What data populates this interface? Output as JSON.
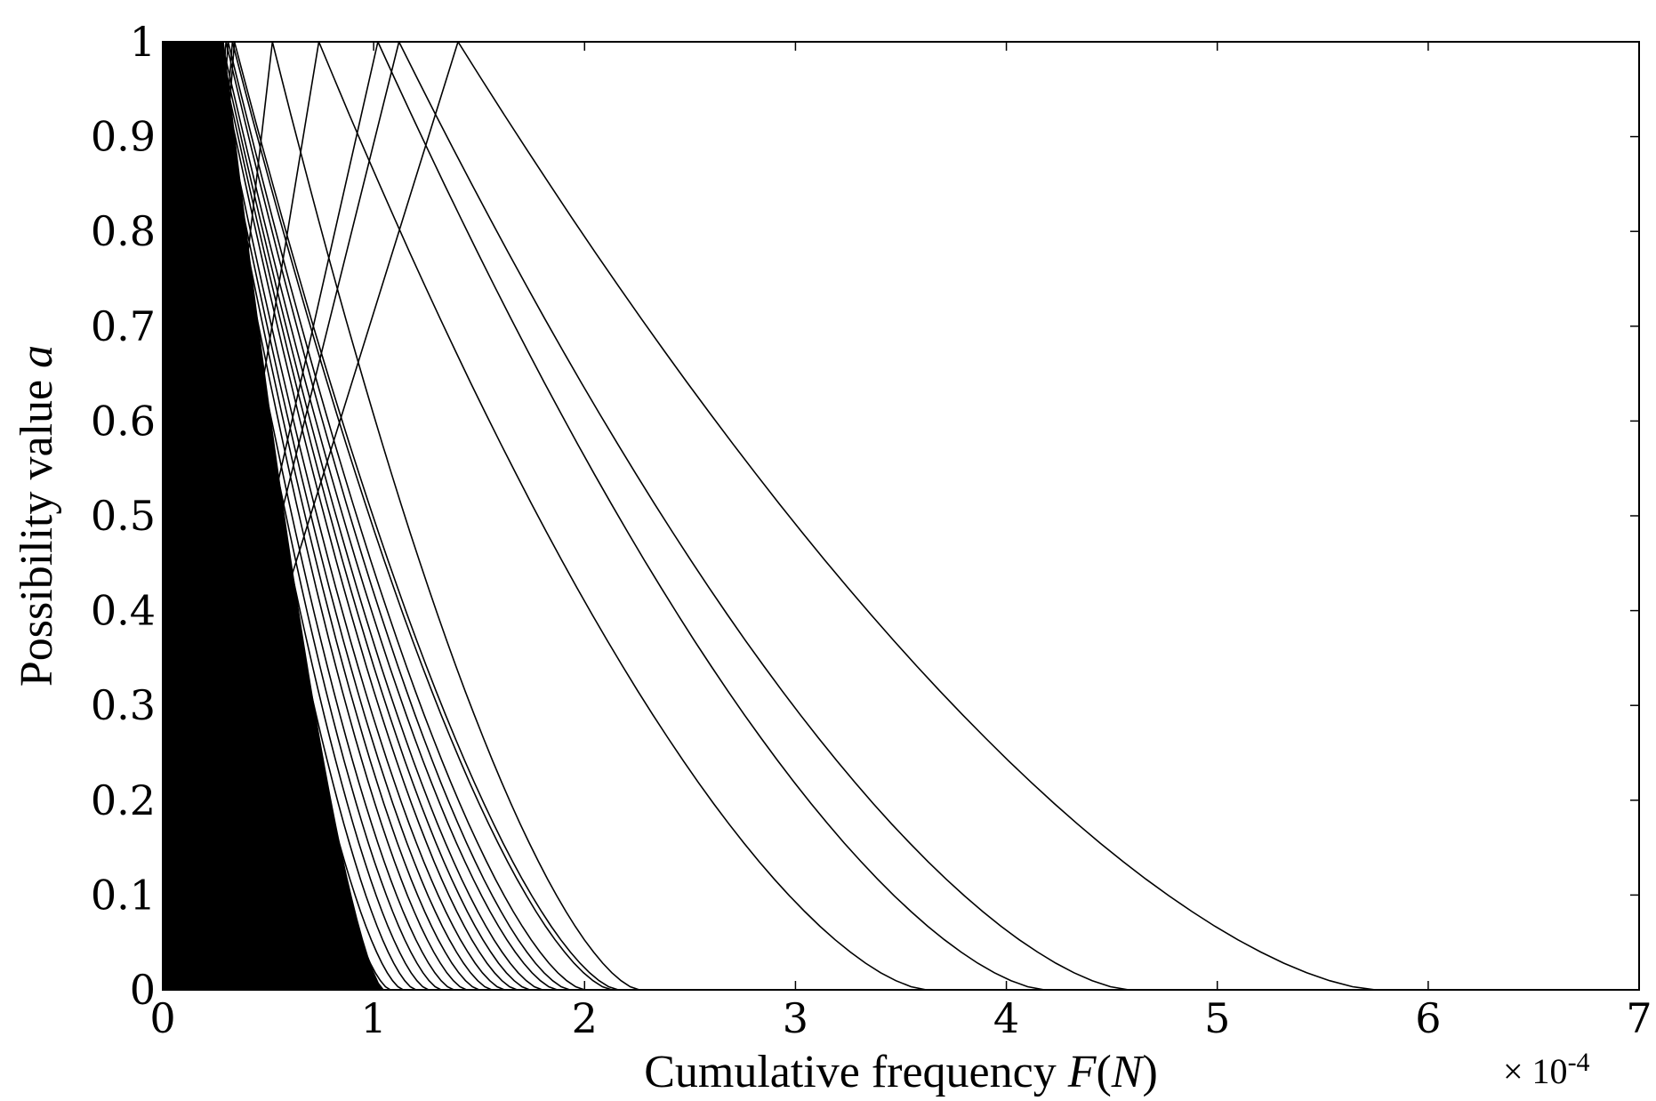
{
  "chart_data": {
    "type": "line",
    "title": "",
    "xlabel_text": "Cumulative frequency ",
    "xlabel_var": "F",
    "xlabel_paren_open": "(",
    "xlabel_var2": "N",
    "xlabel_paren_close": ")",
    "ylabel_text": "Possibility value ",
    "ylabel_var": "a",
    "x_multiplier": "× 10",
    "x_multiplier_exp": "-4",
    "xlim": [
      0,
      7
    ],
    "ylim": [
      0,
      1
    ],
    "xticks": [
      0,
      1,
      2,
      3,
      4,
      5,
      6,
      7
    ],
    "yticks": [
      0,
      0.1,
      0.2,
      0.3,
      0.4,
      0.5,
      0.6,
      0.7,
      0.8,
      0.9,
      1
    ],
    "xtick_labels": [
      "0",
      "1",
      "2",
      "3",
      "4",
      "5",
      "6",
      "7"
    ],
    "ytick_labels": [
      "0",
      "0.1",
      "0.2",
      "0.3",
      "0.4",
      "0.5",
      "0.6",
      "0.7",
      "0.8",
      "0.9",
      "1"
    ],
    "grid": false,
    "legend": "none",
    "line_color": "#000000",
    "series": [
      {
        "x": [
          0.0,
          1.4,
          5.75
        ],
        "y": [
          0,
          1,
          0
        ]
      },
      {
        "x": [
          0.0,
          1.12,
          4.58
        ],
        "y": [
          0,
          1,
          0
        ]
      },
      {
        "x": [
          0.0,
          1.02,
          4.18
        ],
        "y": [
          0,
          1,
          0
        ]
      },
      {
        "x": [
          0.0,
          0.74,
          3.62
        ],
        "y": [
          0,
          1,
          0
        ]
      },
      {
        "x": [
          0.0,
          0.52,
          2.26
        ],
        "y": [
          0,
          1,
          0
        ]
      },
      {
        "x": [
          0.0,
          0.34,
          2.16
        ],
        "y": [
          0,
          1,
          0
        ]
      },
      {
        "x": [
          0.0,
          0.33,
          2.13
        ],
        "y": [
          0,
          1,
          0
        ]
      },
      {
        "x": [
          0.0,
          0.31,
          2.0
        ],
        "y": [
          0,
          1,
          0
        ]
      },
      {
        "x": [
          0.0,
          0.3,
          1.93
        ],
        "y": [
          0,
          1,
          0
        ]
      },
      {
        "x": [
          0.0,
          0.28,
          1.87
        ],
        "y": [
          0,
          1,
          0
        ]
      },
      {
        "x": [
          0.0,
          0.27,
          1.8
        ],
        "y": [
          0,
          1,
          0
        ]
      },
      {
        "x": [
          0.0,
          0.26,
          1.74
        ],
        "y": [
          0,
          1,
          0
        ]
      },
      {
        "x": [
          0.0,
          0.25,
          1.68
        ],
        "y": [
          0,
          1,
          0
        ]
      },
      {
        "x": [
          0.0,
          0.23,
          1.62
        ],
        "y": [
          0,
          1,
          0
        ]
      },
      {
        "x": [
          0.0,
          0.22,
          1.56
        ],
        "y": [
          0,
          1,
          0
        ]
      },
      {
        "x": [
          0.0,
          0.21,
          1.5
        ],
        "y": [
          0,
          1,
          0
        ]
      },
      {
        "x": [
          0.0,
          0.2,
          1.44
        ],
        "y": [
          0,
          1,
          0
        ]
      },
      {
        "x": [
          0.0,
          0.18,
          1.38
        ],
        "y": [
          0,
          1,
          0
        ]
      },
      {
        "x": [
          0.0,
          0.17,
          1.32
        ],
        "y": [
          0,
          1,
          0
        ]
      },
      {
        "x": [
          0.0,
          0.16,
          1.26
        ],
        "y": [
          0,
          1,
          0
        ]
      },
      {
        "x": [
          0.0,
          0.15,
          1.2
        ],
        "y": [
          0,
          1,
          0
        ]
      },
      {
        "x": [
          0.0,
          0.13,
          1.14
        ],
        "y": [
          0,
          1,
          0
        ]
      },
      {
        "x": [
          0.0,
          0.12,
          1.08
        ],
        "y": [
          0,
          1,
          0
        ]
      },
      {
        "x": [
          0.0,
          0.11,
          1.02
        ],
        "y": [
          0,
          1,
          0
        ]
      },
      {
        "x": [
          0.0,
          0.1,
          0.96
        ],
        "y": [
          0,
          1,
          0
        ]
      },
      {
        "x": [
          0.0,
          0.08,
          0.9
        ],
        "y": [
          0,
          1,
          0
        ]
      },
      {
        "x": [
          0.0,
          0.07,
          0.84
        ],
        "y": [
          0,
          1,
          0
        ]
      },
      {
        "x": [
          0.0,
          0.06,
          0.78
        ],
        "y": [
          0,
          1,
          0
        ]
      },
      {
        "x": [
          0.0,
          0.05,
          0.72
        ],
        "y": [
          0,
          1,
          0
        ]
      },
      {
        "x": [
          0.0,
          0.04,
          0.66
        ],
        "y": [
          0,
          1,
          0
        ]
      },
      {
        "x": [
          0.0,
          0.03,
          0.6
        ],
        "y": [
          0,
          1,
          0
        ]
      },
      {
        "x": [
          0.0,
          0.02,
          0.54
        ],
        "y": [
          0,
          1,
          0
        ]
      },
      {
        "x": [
          0.0,
          0.02,
          0.48
        ],
        "y": [
          0,
          1,
          0
        ]
      },
      {
        "x": [
          0.0,
          0.01,
          0.42
        ],
        "y": [
          0,
          1,
          0
        ]
      }
    ]
  }
}
